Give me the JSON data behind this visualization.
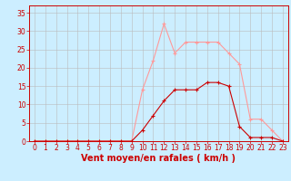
{
  "x": [
    0,
    1,
    2,
    3,
    4,
    5,
    6,
    7,
    8,
    9,
    10,
    11,
    12,
    13,
    14,
    15,
    16,
    17,
    18,
    19,
    20,
    21,
    22,
    23
  ],
  "wind_avg": [
    0,
    0,
    0,
    0,
    0,
    0,
    0,
    0,
    0,
    0,
    3,
    7,
    11,
    14,
    14,
    14,
    16,
    16,
    15,
    4,
    1,
    1,
    1,
    0
  ],
  "wind_gust": [
    0,
    0,
    0,
    0,
    0,
    0,
    0,
    0,
    0,
    0,
    14,
    22,
    32,
    24,
    27,
    27,
    27,
    27,
    24,
    21,
    6,
    6,
    3,
    0
  ],
  "bg_color": "#cceeff",
  "grid_color": "#bbbbbb",
  "line_avg_color": "#cc0000",
  "line_gust_color": "#ff9999",
  "marker_size": 2.5,
  "xlabel": "Vent moyen/en rafales ( km/h )",
  "xlim": [
    -0.5,
    23.5
  ],
  "ylim": [
    0,
    37
  ],
  "yticks": [
    0,
    5,
    10,
    15,
    20,
    25,
    30,
    35
  ],
  "xticks": [
    0,
    1,
    2,
    3,
    4,
    5,
    6,
    7,
    8,
    9,
    10,
    11,
    12,
    13,
    14,
    15,
    16,
    17,
    18,
    19,
    20,
    21,
    22,
    23
  ],
  "tick_color": "#cc0000",
  "axis_color": "#cc0000",
  "xlabel_fontsize": 7,
  "tick_fontsize": 5.5
}
